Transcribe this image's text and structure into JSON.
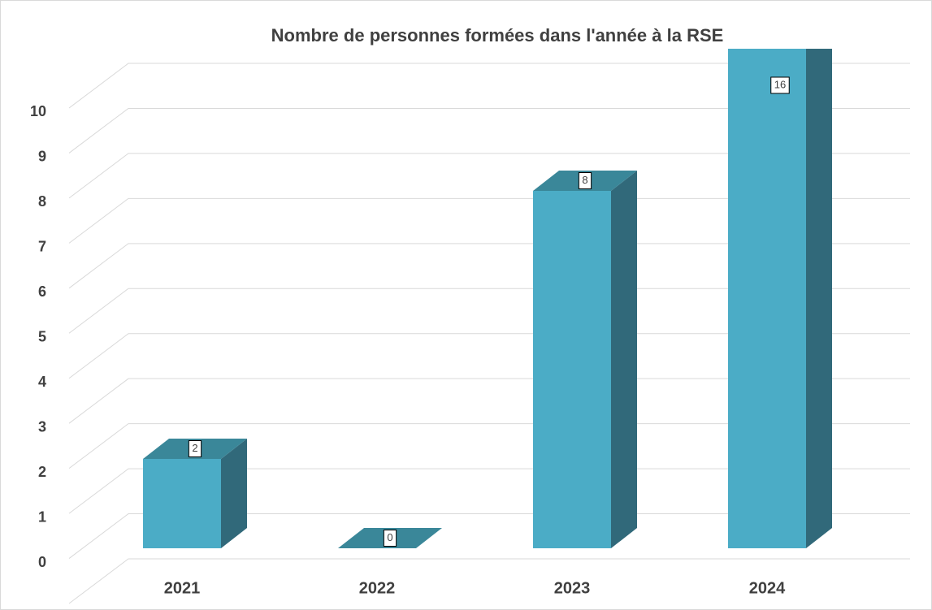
{
  "chart_data": {
    "type": "bar3d",
    "title": "Nombre de personnes formées dans l'année à la RSE",
    "categories": [
      "2021",
      "2022",
      "2023",
      "2024"
    ],
    "values": [
      2,
      0,
      8,
      16
    ],
    "color": "#4bacc6",
    "side_color": "#31697a",
    "top_color": "#3a8799",
    "ylim": [
      0,
      11
    ],
    "yticks": [
      0,
      1,
      2,
      3,
      4,
      5,
      6,
      7,
      8,
      9,
      10
    ],
    "grid": true
  }
}
